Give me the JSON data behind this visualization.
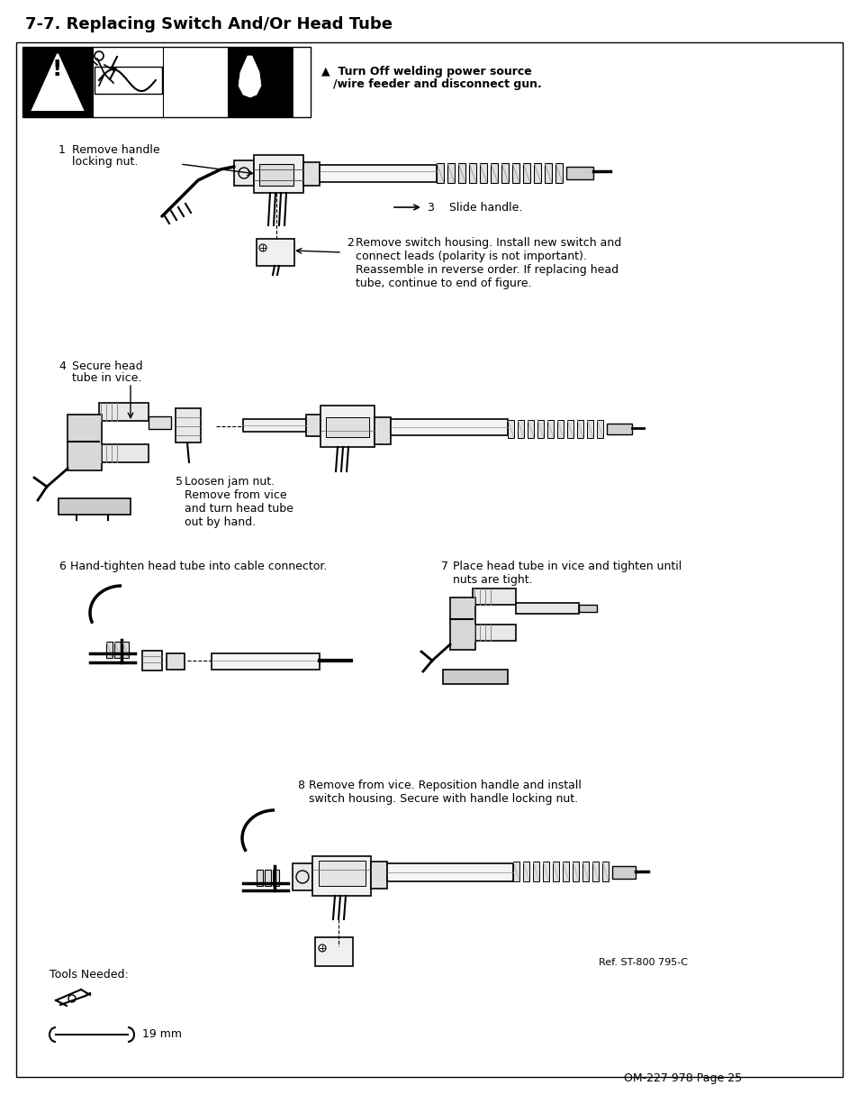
{
  "title": "7-7. Replacing Switch And/Or Head Tube",
  "page_footer": "OM-227 978 Page 25",
  "ref_label": "Ref. ST-800 795-C",
  "warning_line1": "Turn Off welding power source",
  "warning_line2": "/wire feeder and disconnect gun.",
  "step1": "1    Remove handle\n     locking nut.",
  "step2_num": "2",
  "step2_text": "Remove switch housing. Install new switch and\nconnect leads (polarity is not important).\nReassemble in reverse order. If replacing head\ntube, continue to end of figure.",
  "step3": "3    Slide handle.",
  "step4": "4    Secure head\n     tube in vice.",
  "step5_num": "5",
  "step5_text": "Loosen jam nut.\nRemove from vice\nand turn head tube\nout by hand.",
  "step6": "6    Hand-tighten head tube into cable connector.",
  "step7_num": "7",
  "step7_text": "Place head tube in vice and tighten until\nnuts are tight.",
  "step8_num": "8",
  "step8_text": "Remove from vice. Reposition handle and install\nswitch housing. Secure with handle locking nut.",
  "tools_label": "Tools Needed:",
  "tools_size": "19 mm",
  "bg_color": "#ffffff",
  "border_color": "#000000",
  "page_bg": "#f5f5f5"
}
